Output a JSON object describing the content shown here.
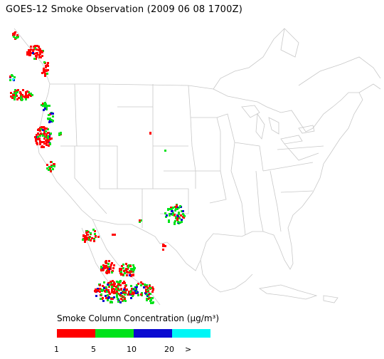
{
  "title": "GOES-12 Smoke Observation (2009 06 08  1700Z)",
  "legend": {
    "title": "Smoke Column Concentration (μg/m³)",
    "bins": [
      {
        "color": "#ff0000"
      },
      {
        "color": "#00e21a"
      },
      {
        "color": "#0a0ad0"
      },
      {
        "color": "#00f6f6"
      }
    ],
    "ticks": [
      "1",
      "5",
      "10",
      "20",
      ">"
    ]
  },
  "map": {
    "basemap": "usa-state-outlines",
    "outline_color": "#c8c8c8"
  }
}
